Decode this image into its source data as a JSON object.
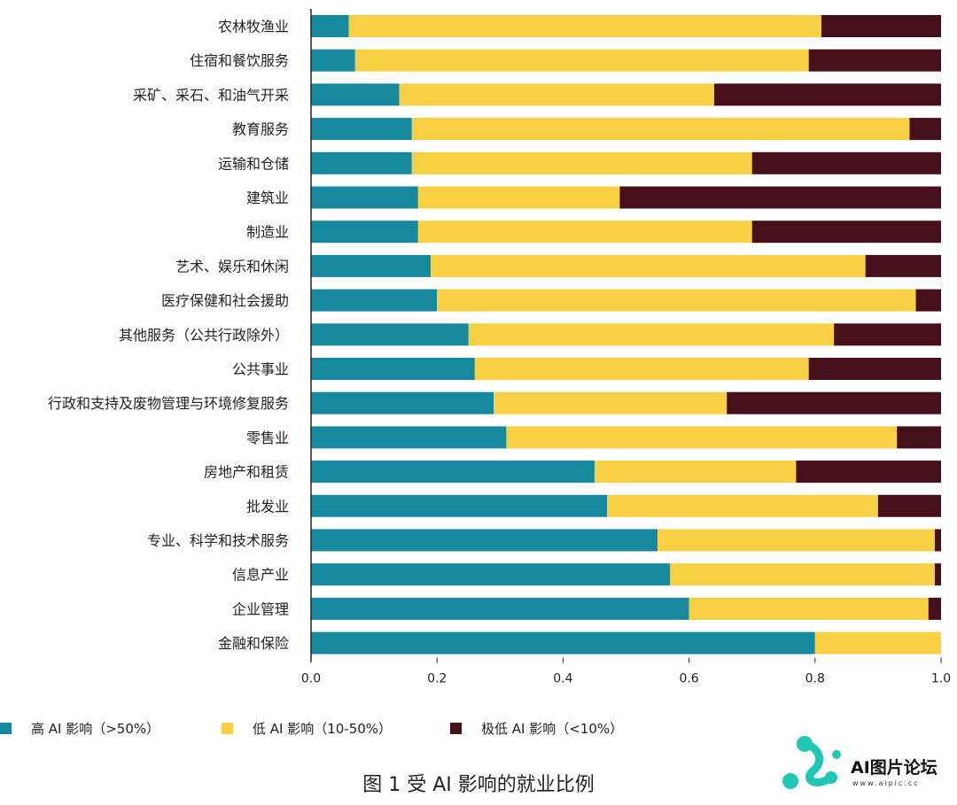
{
  "chart_data": {
    "type": "bar",
    "orientation": "horizontal",
    "stacked": true,
    "categories": [
      "农林牧渔业",
      "住宿和餐饮服务",
      "采矿、采石、和油气开采",
      "教育服务",
      "运输和仓储",
      "建筑业",
      "制造业",
      "艺术、娱乐和休闲",
      "医疗保健和社会援助",
      "其他服务（公共行政除外）",
      "公共事业",
      "行政和支持及废物管理与环境修复服务",
      "零售业",
      "房地产和租赁",
      "批发业",
      "专业、科学和技术服务",
      "信息产业",
      "企业管理",
      "金融和保险"
    ],
    "series": [
      {
        "name": "高 AI 影响（>50%）",
        "color": "#17899f",
        "values": [
          0.06,
          0.07,
          0.14,
          0.16,
          0.16,
          0.17,
          0.17,
          0.19,
          0.2,
          0.25,
          0.26,
          0.29,
          0.31,
          0.45,
          0.47,
          0.55,
          0.57,
          0.6,
          0.8
        ]
      },
      {
        "name": "低 AI 影响（10-50%）",
        "color": "#f8d043",
        "values": [
          0.75,
          0.72,
          0.5,
          0.79,
          0.54,
          0.32,
          0.53,
          0.69,
          0.76,
          0.58,
          0.53,
          0.37,
          0.62,
          0.32,
          0.43,
          0.44,
          0.42,
          0.38,
          0.2
        ]
      },
      {
        "name": "极低 AI 影响（<10%）",
        "color": "#45101a",
        "values": [
          0.19,
          0.21,
          0.36,
          0.05,
          0.3,
          0.51,
          0.3,
          0.12,
          0.04,
          0.17,
          0.21,
          0.34,
          0.07,
          0.23,
          0.1,
          0.01,
          0.01,
          0.02,
          0.0
        ]
      }
    ],
    "xlim": [
      0,
      1.0
    ],
    "xticks": [
      "0.0",
      "0.2",
      "0.4",
      "0.6",
      "0.8",
      "1.0"
    ],
    "grid": false,
    "legend_position": "bottom",
    "title": "图 1 受 AI 影响的就业比例"
  },
  "watermark": {
    "text": "AI图片论坛",
    "url": "www.aipic.cc"
  }
}
